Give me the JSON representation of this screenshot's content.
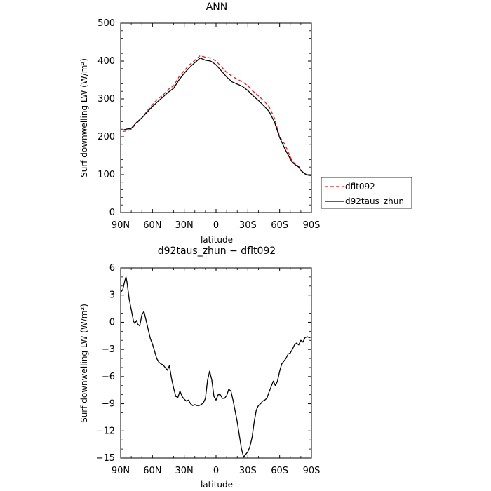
{
  "chart_data": [
    {
      "type": "line",
      "title": "ANN",
      "xlabel": "latitude",
      "ylabel": "Surf downwelling LW (W/m²)",
      "xlim": [
        90,
        -90
      ],
      "ylim": [
        0,
        500
      ],
      "x_ticks": [
        90,
        60,
        30,
        0,
        -30,
        -60,
        -90
      ],
      "x_tick_labels": [
        "90N",
        "60N",
        "30N",
        "0",
        "30S",
        "60S",
        "90S"
      ],
      "y_ticks": [
        0,
        100,
        200,
        300,
        400,
        500
      ],
      "y_tick_labels": [
        "0",
        "100",
        "200",
        "300",
        "400",
        "500"
      ],
      "grid": false,
      "legend_position": "outside-right",
      "series": [
        {
          "name": "dflt092",
          "color": "#e41a1c",
          "dash": "dashed",
          "x": [
            88,
            85,
            80,
            75,
            70,
            65,
            60,
            55,
            50,
            45,
            40,
            35,
            30,
            25,
            20,
            15,
            10,
            5,
            0,
            -5,
            -10,
            -15,
            -20,
            -25,
            -30,
            -35,
            -40,
            -45,
            -50,
            -55,
            -60,
            -65,
            -68,
            -70,
            -72,
            -75,
            -78,
            -80,
            -83,
            -85,
            -88,
            -90
          ],
          "values": [
            214,
            215,
            220,
            235,
            250,
            268,
            285,
            300,
            310,
            325,
            335,
            358,
            375,
            390,
            402,
            414,
            410,
            408,
            400,
            385,
            370,
            360,
            352,
            345,
            335,
            320,
            308,
            295,
            280,
            250,
            200,
            180,
            160,
            148,
            135,
            128,
            122,
            112,
            104,
            101,
            99,
            98
          ]
        },
        {
          "name": "d92taus_zhun",
          "color": "#000000",
          "dash": "solid",
          "x": [
            88,
            85,
            80,
            75,
            70,
            65,
            60,
            55,
            50,
            45,
            40,
            35,
            30,
            25,
            20,
            15,
            10,
            5,
            0,
            -5,
            -10,
            -15,
            -20,
            -25,
            -30,
            -35,
            -40,
            -45,
            -50,
            -55,
            -60,
            -65,
            -68,
            -70,
            -72,
            -75,
            -78,
            -80,
            -83,
            -85,
            -88,
            -90
          ],
          "values": [
            217,
            220,
            222,
            238,
            250,
            265,
            280,
            293,
            305,
            318,
            328,
            350,
            368,
            383,
            396,
            408,
            402,
            400,
            390,
            374,
            358,
            345,
            339,
            333,
            322,
            308,
            296,
            282,
            267,
            240,
            198,
            168,
            152,
            142,
            132,
            126,
            120,
            111,
            104,
            100,
            98,
            98
          ]
        }
      ]
    },
    {
      "type": "line",
      "title": "d92taus_zhun − dflt092",
      "xlabel": "latitude",
      "ylabel": "Surf downwelling LW (W/m²)",
      "xlim": [
        90,
        -90
      ],
      "ylim": [
        -15,
        6
      ],
      "x_ticks": [
        90,
        60,
        30,
        0,
        -30,
        -60,
        -90
      ],
      "x_tick_labels": [
        "90N",
        "60N",
        "30N",
        "0",
        "30S",
        "60S",
        "90S"
      ],
      "y_ticks": [
        6,
        3,
        0,
        -3,
        -6,
        -9,
        -12,
        -15
      ],
      "y_tick_labels": [
        "6",
        "3",
        "0",
        "−3",
        "−6",
        "−9",
        "−12",
        "−15"
      ],
      "grid": false,
      "series": [
        {
          "color": "#000000",
          "dash": "solid",
          "x": [
            90,
            88,
            86,
            85,
            84,
            82,
            80,
            78,
            77,
            76,
            75,
            74,
            72,
            70,
            68,
            66,
            64,
            62,
            60,
            58,
            56,
            54,
            52,
            50,
            48,
            46,
            44,
            42,
            40,
            38,
            36,
            34,
            32,
            30,
            28,
            26,
            24,
            22,
            20,
            18,
            16,
            14,
            12,
            10,
            8,
            6,
            4,
            2,
            0,
            -2,
            -4,
            -6,
            -8,
            -10,
            -12,
            -14,
            -16,
            -18,
            -20,
            -22,
            -24,
            -26,
            -28,
            -30,
            -32,
            -34,
            -36,
            -38,
            -40,
            -42,
            -44,
            -46,
            -48,
            -50,
            -52,
            -54,
            -56,
            -58,
            -60,
            -62,
            -64,
            -66,
            -68,
            -70,
            -72,
            -74,
            -76,
            -78,
            -80,
            -82,
            -84,
            -86,
            -88,
            -90
          ],
          "values": [
            3.3,
            3.6,
            4.6,
            5.0,
            4.4,
            2.6,
            1.4,
            0.2,
            -0.1,
            0.0,
            0.2,
            -0.2,
            -0.4,
            0.8,
            1.2,
            0.2,
            -0.8,
            -1.8,
            -2.4,
            -3.2,
            -4.0,
            -4.4,
            -4.6,
            -4.7,
            -5.0,
            -5.3,
            -4.8,
            -6.2,
            -7.3,
            -8.2,
            -8.3,
            -7.6,
            -8.2,
            -8.5,
            -8.7,
            -8.6,
            -9.0,
            -9.2,
            -9.1,
            -9.2,
            -9.2,
            -9.1,
            -8.9,
            -8.4,
            -6.4,
            -5.4,
            -6.4,
            -8.2,
            -8.6,
            -8.0,
            -8.0,
            -8.4,
            -8.4,
            -8.1,
            -7.4,
            -7.6,
            -8.6,
            -9.8,
            -11.0,
            -12.5,
            -14.0,
            -14.9,
            -14.6,
            -14.3,
            -13.7,
            -12.7,
            -11.0,
            -9.7,
            -9.2,
            -9.0,
            -8.7,
            -8.6,
            -8.4,
            -7.7,
            -7.1,
            -6.5,
            -7.0,
            -6.5,
            -5.4,
            -4.6,
            -4.3,
            -4.0,
            -3.5,
            -3.4,
            -3.0,
            -2.5,
            -2.3,
            -2.5,
            -2.0,
            -2.2,
            -1.7,
            -1.6,
            -1.7,
            -1.6
          ]
        }
      ]
    }
  ]
}
